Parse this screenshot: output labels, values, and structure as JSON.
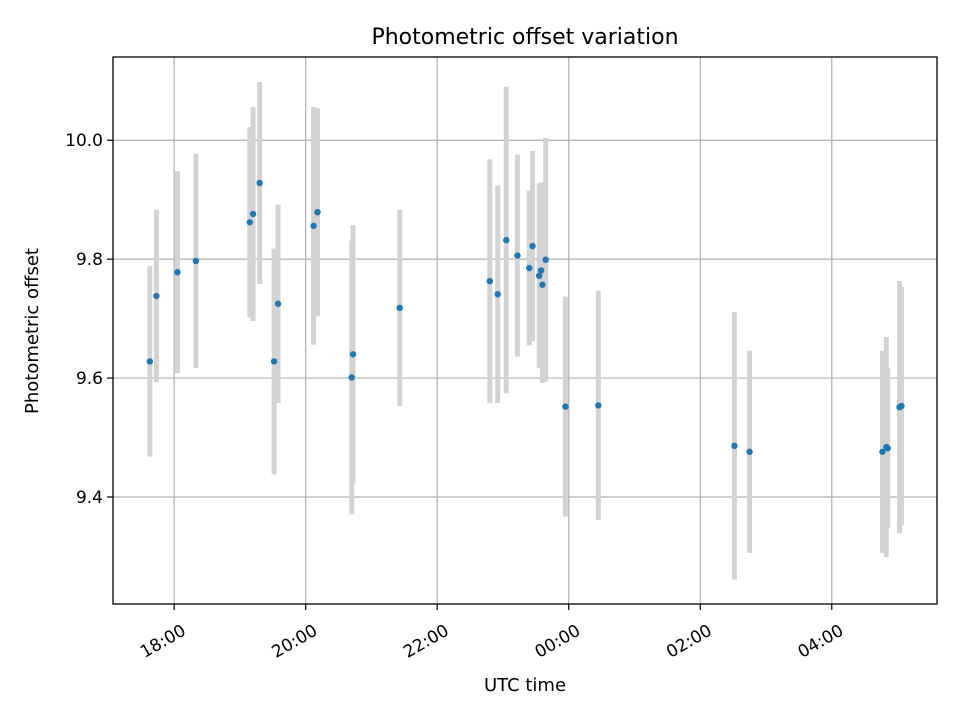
{
  "chart_data": {
    "type": "scatter",
    "title": "Photometric offset variation",
    "xlabel": "UTC time",
    "ylabel": "Photometric offset",
    "x_unit": "hours after 18:00 UTC of first night (values > 24 wrap past midnight)",
    "xlim": [
      -0.93,
      11.6
    ],
    "ylim": [
      9.22,
      10.14
    ],
    "grid": true,
    "x_ticks": [
      {
        "value": 0,
        "label": "18:00"
      },
      {
        "value": 2,
        "label": "20:00"
      },
      {
        "value": 4,
        "label": "22:00"
      },
      {
        "value": 6,
        "label": "00:00"
      },
      {
        "value": 8,
        "label": "02:00"
      },
      {
        "value": 10,
        "label": "04:00"
      }
    ],
    "y_ticks": [
      {
        "value": 9.4,
        "label": "9.4"
      },
      {
        "value": 9.6,
        "label": "9.6"
      },
      {
        "value": 9.8,
        "label": "9.8"
      },
      {
        "value": 10.0,
        "label": "10.0"
      }
    ],
    "marker_color": "#1f77b4",
    "errorbar_color": "#d3d3d3",
    "points": [
      {
        "x": -0.37,
        "y": 9.628,
        "err_low": 0.16,
        "err_high": 0.16
      },
      {
        "x": -0.27,
        "y": 9.738,
        "err_low": 0.145,
        "err_high": 0.145
      },
      {
        "x": 0.05,
        "y": 9.778,
        "err_low": 0.17,
        "err_high": 0.17
      },
      {
        "x": 0.33,
        "y": 9.797,
        "err_low": 0.18,
        "err_high": 0.18
      },
      {
        "x": 1.15,
        "y": 9.862,
        "err_low": 0.16,
        "err_high": 0.16
      },
      {
        "x": 1.2,
        "y": 9.876,
        "err_low": 0.18,
        "err_high": 0.18
      },
      {
        "x": 1.3,
        "y": 9.928,
        "err_low": 0.17,
        "err_high": 0.17
      },
      {
        "x": 1.52,
        "y": 9.628,
        "err_low": 0.19,
        "err_high": 0.19
      },
      {
        "x": 1.58,
        "y": 9.725,
        "err_low": 0.167,
        "err_high": 0.167
      },
      {
        "x": 2.12,
        "y": 9.856,
        "err_low": 0.2,
        "err_high": 0.2
      },
      {
        "x": 2.18,
        "y": 9.879,
        "err_low": 0.175,
        "err_high": 0.175
      },
      {
        "x": 2.7,
        "y": 9.601,
        "err_low": 0.23,
        "err_high": 0.23
      },
      {
        "x": 2.72,
        "y": 9.64,
        "err_low": 0.217,
        "err_high": 0.217
      },
      {
        "x": 3.43,
        "y": 9.718,
        "err_low": 0.165,
        "err_high": 0.165
      },
      {
        "x": 4.8,
        "y": 9.763,
        "err_low": 0.205,
        "err_high": 0.205
      },
      {
        "x": 4.92,
        "y": 9.741,
        "err_low": 0.183,
        "err_high": 0.183
      },
      {
        "x": 5.05,
        "y": 9.832,
        "err_low": 0.258,
        "err_high": 0.258
      },
      {
        "x": 5.22,
        "y": 9.806,
        "err_low": 0.17,
        "err_high": 0.17
      },
      {
        "x": 5.4,
        "y": 9.785,
        "err_low": 0.13,
        "err_high": 0.13
      },
      {
        "x": 5.45,
        "y": 9.822,
        "err_low": 0.16,
        "err_high": 0.16
      },
      {
        "x": 5.55,
        "y": 9.772,
        "err_low": 0.155,
        "err_high": 0.155
      },
      {
        "x": 5.58,
        "y": 9.781,
        "err_low": 0.148,
        "err_high": 0.148
      },
      {
        "x": 5.6,
        "y": 9.757,
        "err_low": 0.165,
        "err_high": 0.165
      },
      {
        "x": 5.65,
        "y": 9.799,
        "err_low": 0.205,
        "err_high": 0.205
      },
      {
        "x": 5.95,
        "y": 9.552,
        "err_low": 0.185,
        "err_high": 0.185
      },
      {
        "x": 6.45,
        "y": 9.554,
        "err_low": 0.193,
        "err_high": 0.193
      },
      {
        "x": 8.52,
        "y": 9.486,
        "err_low": 0.225,
        "err_high": 0.225
      },
      {
        "x": 8.75,
        "y": 9.476,
        "err_low": 0.17,
        "err_high": 0.17
      },
      {
        "x": 10.77,
        "y": 9.476,
        "err_low": 0.17,
        "err_high": 0.17
      },
      {
        "x": 10.83,
        "y": 9.484,
        "err_low": 0.185,
        "err_high": 0.185
      },
      {
        "x": 10.85,
        "y": 9.482,
        "err_low": 0.135,
        "err_high": 0.135
      },
      {
        "x": 11.03,
        "y": 9.551,
        "err_low": 0.212,
        "err_high": 0.212
      },
      {
        "x": 11.06,
        "y": 9.553,
        "err_low": 0.2,
        "err_high": 0.2
      }
    ]
  }
}
